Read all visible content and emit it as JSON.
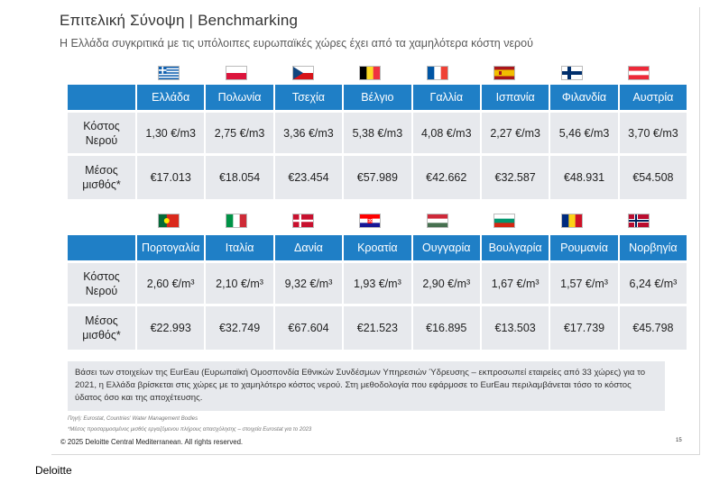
{
  "title": "Επιτελική Σύνοψη | Benchmarking",
  "subtitle": "Η Ελλάδα συγκριτικά με τις υπόλοιπες ευρωπαϊκές χώρες έχει από τα χαμηλότερα κόστη νερού",
  "row_labels": {
    "cost": "Κόστος Νερού",
    "salary": "Μέσος μισθός*"
  },
  "table1": {
    "countries": [
      "Ελλάδα",
      "Πολωνία",
      "Τσεχία",
      "Βέλγιο",
      "Γαλλία",
      "Ισπανία",
      "Φιλανδία",
      "Αυστρία"
    ],
    "flags": [
      "greece-flag-icon",
      "poland-flag-icon",
      "czechia-flag-icon",
      "belgium-flag-icon",
      "france-flag-icon",
      "spain-flag-icon",
      "finland-flag-icon",
      "austria-flag-icon"
    ],
    "cost": [
      "1,30 €/m3",
      "2,75 €/m3",
      "3,36 €/m3",
      "5,38 €/m3",
      "4,08 €/m3",
      "2,27 €/m3",
      "5,46 €/m3",
      "3,70 €/m3"
    ],
    "salary": [
      "€17.013",
      "€18.054",
      "€23.454",
      "€57.989",
      "€42.662",
      "€32.587",
      "€48.931",
      "€54.508"
    ]
  },
  "table2": {
    "countries": [
      "Πορτογαλία",
      "Ιταλία",
      "Δανία",
      "Κροατία",
      "Ουγγαρία",
      "Βουλγαρία",
      "Ρουμανία",
      "Νορβηγία"
    ],
    "flags": [
      "portugal-flag-icon",
      "italy-flag-icon",
      "denmark-flag-icon",
      "croatia-flag-icon",
      "hungary-flag-icon",
      "bulgaria-flag-icon",
      "romania-flag-icon",
      "norway-flag-icon"
    ],
    "cost": [
      "2,60 €/m³",
      "2,10 €/m³",
      "9,32 €/m³",
      "1,93 €/m³",
      "2,90 €/m³",
      "1,67 €/m³",
      "1,57 €/m³",
      "6,24 €/m³"
    ],
    "salary": [
      "€22.993",
      "€32.749",
      "€67.604",
      "€21.523",
      "€16.895",
      "€13.503",
      "€17.739",
      "€45.798"
    ]
  },
  "note": "Βάσει των στοιχείων της EurEau (Ευρωπαϊκή Ομοσπονδία Εθνικών Συνδέσμων Υπηρεσιών Ύδρευσης – εκπροσωπεί εταιρείες από 33 χώρες) για το 2021, η Ελλάδα βρίσκεται στις χώρες με το χαμηλότερο κόστος νερού. Στη μεθοδολογία που εφάρμοσε το EurEau περιλαμβάνεται τόσο το κόστος ύδατος όσο και της αποχέτευσης.",
  "source_line": "Πηγή: Eurostat, Countries' Water Management Bodies",
  "salary_footnote": "*Μέσος προσαρμοσμένος μισθός εργαζόμενου πλήρους απασχόλησης – στοιχεία Eurostat για το 2023",
  "copyright": "© 2025 Deloitte Central Mediterranean. All rights reserved.",
  "page_number": "15",
  "brand": "Deloitte"
}
